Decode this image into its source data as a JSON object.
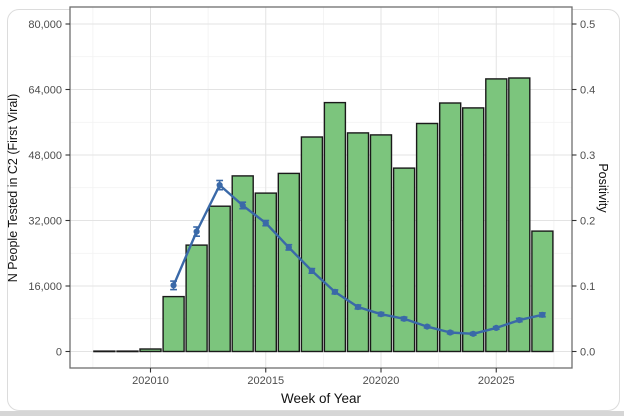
{
  "page": {
    "background": "#ffffff",
    "card_border": "#dcdcdc",
    "bottom_strip_color": "#d6d6d6"
  },
  "chart_data": {
    "type": "combo-bar-line",
    "title": "",
    "xlabel": "Week of Year",
    "ylabel_left": "N People Tested in C2 (First Viral)",
    "ylabel_right": "Positivity",
    "layout": {
      "grid": "on",
      "legend": "none",
      "left_axis_range": [
        0,
        80000
      ],
      "right_axis_range": [
        0.0,
        0.5
      ],
      "panel_border": true
    },
    "colors": {
      "bar_fill": "#7cc57d",
      "bar_stroke": "#1a1a1a",
      "line": "#3a69a8",
      "grid_major": "#e3e3e3",
      "grid_minor": "#f1f1f1",
      "panel_border": "#6e6e6e",
      "tick_mark": "#333333",
      "tick_text": "#4d4d4d"
    },
    "bars": {
      "name": "N People Tested in C2 (First Viral)",
      "weeks": [
        202008,
        202009,
        202010,
        202011,
        202012,
        202013,
        202014,
        202015,
        202016,
        202017,
        202018,
        202019,
        202020,
        202021,
        202022,
        202023,
        202024,
        202025,
        202026,
        202027
      ],
      "values": [
        100,
        100,
        600,
        13400,
        26000,
        35500,
        42900,
        38700,
        43500,
        52400,
        60800,
        53400,
        52900,
        44800,
        55700,
        60700,
        59500,
        66600,
        66800,
        29400
      ]
    },
    "line": {
      "name": "Positivity",
      "weeks": [
        202011,
        202012,
        202013,
        202014,
        202015,
        202016,
        202017,
        202018,
        202019,
        202020,
        202021,
        202022,
        202023,
        202024,
        202025,
        202026,
        202027
      ],
      "values": [
        0.101,
        0.183,
        0.254,
        0.223,
        0.196,
        0.159,
        0.123,
        0.091,
        0.068,
        0.057,
        0.05,
        0.038,
        0.029,
        0.027,
        0.036,
        0.048,
        0.056
      ],
      "errors": [
        0.0065,
        0.007,
        0.007,
        0.005,
        0.004,
        0.004,
        0.0035,
        0.003,
        0.003,
        0.0025,
        0.0025,
        0.002,
        0.002,
        0.002,
        0.002,
        0.0025,
        0.003
      ]
    },
    "left_axis": {
      "tick_values": [
        0,
        16000,
        32000,
        48000,
        64000,
        80000
      ],
      "tick_labels": [
        "0",
        "16,000",
        "32,000",
        "48,000",
        "64,000",
        "80,000"
      ],
      "minor_values": [
        8000,
        24000,
        40000,
        56000,
        72000
      ]
    },
    "right_axis": {
      "tick_values": [
        0.0,
        0.1,
        0.2,
        0.3,
        0.4,
        0.5
      ],
      "tick_labels": [
        "0.0",
        "0.1",
        "0.2",
        "0.3",
        "0.4",
        "0.5"
      ],
      "minor_values": [
        0.05,
        0.15,
        0.25,
        0.35,
        0.45
      ]
    },
    "x_axis": {
      "tick_values": [
        202010,
        202015,
        202020,
        202025
      ],
      "tick_labels": [
        "202010",
        "202015",
        "202020",
        "202025"
      ],
      "minor_values": [
        202007.5,
        202012.5,
        202017.5,
        202022.5,
        202027.5
      ]
    }
  }
}
